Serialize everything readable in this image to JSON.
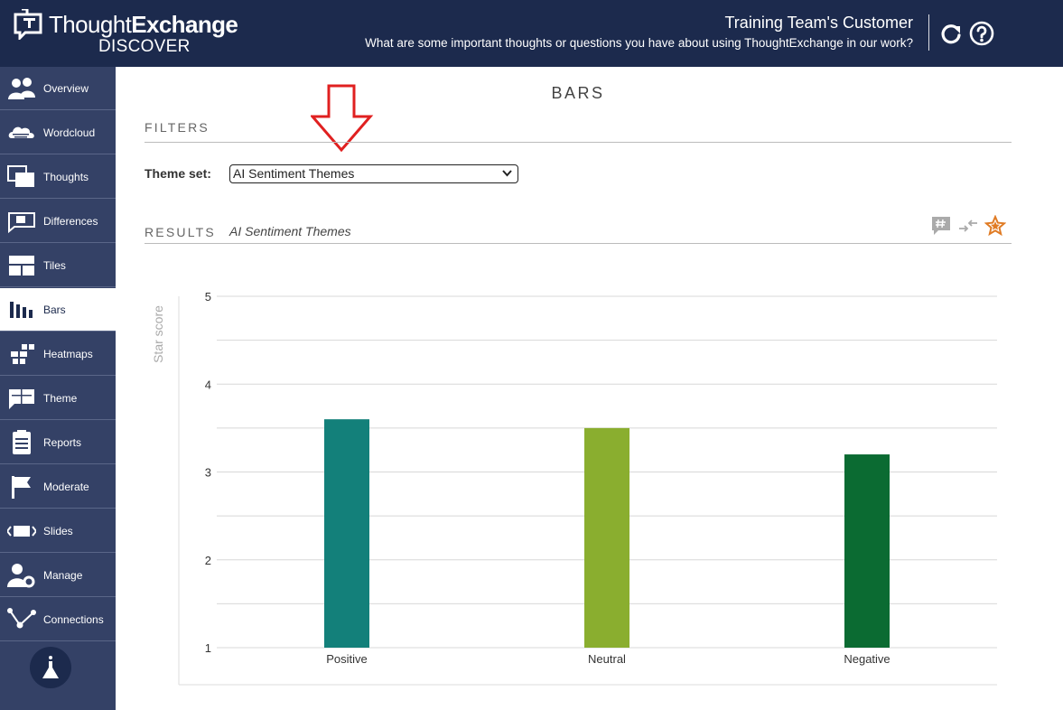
{
  "header": {
    "logo_thin": "Thought",
    "logo_bold": "Exchange",
    "logo_sub": "DISCOVER",
    "title": "Training Team's Customer",
    "question": "What are some important thoughts or questions you have about using ThoughtExchange in our work?"
  },
  "sidebar": {
    "items": [
      {
        "label": "Overview",
        "icon": "people-icon"
      },
      {
        "label": "Wordcloud",
        "icon": "cloud-icon"
      },
      {
        "label": "Thoughts",
        "icon": "thoughts-icon"
      },
      {
        "label": "Differences",
        "icon": "differences-icon"
      },
      {
        "label": "Tiles",
        "icon": "tiles-icon"
      },
      {
        "label": "Bars",
        "icon": "bars-icon"
      },
      {
        "label": "Heatmaps",
        "icon": "heatmap-icon"
      },
      {
        "label": "Theme",
        "icon": "theme-icon"
      },
      {
        "label": "Reports",
        "icon": "reports-icon"
      },
      {
        "label": "Moderate",
        "icon": "flag-icon"
      },
      {
        "label": "Slides",
        "icon": "slides-icon"
      },
      {
        "label": "Manage",
        "icon": "manage-icon"
      },
      {
        "label": "Connections",
        "icon": "connections-icon"
      }
    ],
    "active": "Bars"
  },
  "main": {
    "page_title": "BARS",
    "filters_title": "FILTERS",
    "theme_set_label": "Theme set:",
    "theme_set_value": "AI Sentiment Themes",
    "results_title": "RESULTS",
    "results_subtitle": "AI Sentiment Themes"
  },
  "colors": {
    "header_bg": "#1c2a4d",
    "sidebar_bg": "#344166",
    "accent_orange": "#e07b24",
    "annotation_red": "#e02020"
  },
  "chart_data": {
    "type": "bar",
    "categories": [
      "Positive",
      "Neutral",
      "Negative"
    ],
    "values": [
      3.6,
      3.5,
      3.2
    ],
    "colors": [
      "#13807a",
      "#8aae2f",
      "#0b6b32"
    ],
    "ylabel": "Star score",
    "ylim": [
      1,
      5
    ],
    "yticks": [
      1,
      2,
      3,
      4,
      5
    ],
    "grid": true
  }
}
